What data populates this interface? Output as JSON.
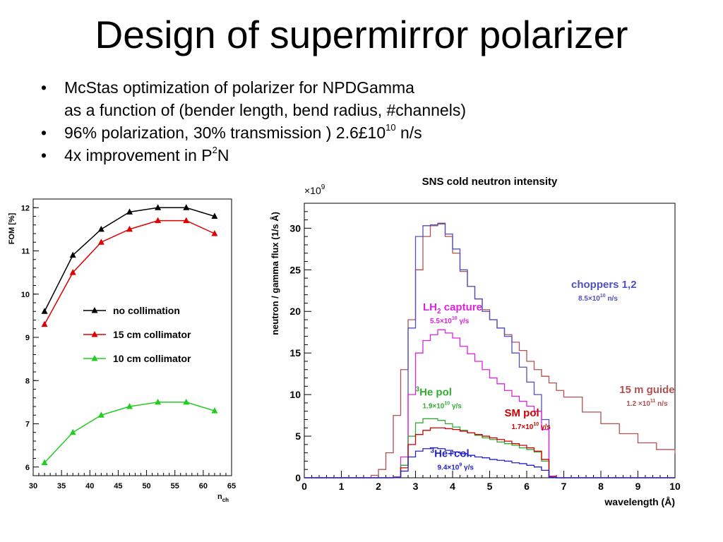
{
  "slide": {
    "title": "Design of supermirror polarizer",
    "bullets": [
      {
        "marker": "•",
        "text": "McStas optimization of polarizer for NPDGamma"
      },
      {
        "marker": "",
        "text": "as a function of (bender length, bend radius, #channels)"
      },
      {
        "marker": "•",
        "text_before": "96% polarization, 30% transmission  )  2.6£10",
        "sup": "10",
        "text_after": " n/s"
      },
      {
        "marker": "•",
        "text_before": "4x improvement in P",
        "sup": "2",
        "text_after": "N"
      }
    ]
  },
  "chart_data": [
    {
      "type": "line",
      "title": "",
      "xlabel": "n_ch",
      "ylabel": "FOM  [%]",
      "xlim": [
        30,
        65
      ],
      "ylim": [
        5.8,
        12.2
      ],
      "xticks": [
        30,
        35,
        40,
        45,
        50,
        55,
        60,
        65
      ],
      "yticks": [
        6,
        7,
        8,
        9,
        10,
        11,
        12
      ],
      "grid": false,
      "legend_position": "upper-middle",
      "x": [
        32,
        37,
        42,
        47,
        52,
        57,
        62
      ],
      "series": [
        {
          "name": "no collimation",
          "color": "#000000",
          "marker": "triangle",
          "values": [
            9.6,
            10.9,
            11.5,
            11.9,
            12.0,
            12.0,
            11.8
          ]
        },
        {
          "name": "15 cm collimator",
          "color": "#dd0000",
          "marker": "triangle",
          "values": [
            9.3,
            10.5,
            11.2,
            11.5,
            11.7,
            11.7,
            11.4
          ]
        },
        {
          "name": "10 cm collimator",
          "color": "#22cc22",
          "marker": "triangle",
          "values": [
            6.1,
            6.8,
            7.2,
            7.4,
            7.5,
            7.5,
            7.3
          ]
        }
      ]
    },
    {
      "type": "line",
      "title": "SNS cold neutron intensity",
      "xlabel": "wavelength (Å)",
      "ylabel": "neutron / gamma flux (1/s Å)",
      "y_multiplier": "×10",
      "y_multiplier_exp": "9",
      "xlim": [
        0,
        10
      ],
      "ylim": [
        0,
        33
      ],
      "xticks": [
        0,
        1,
        2,
        3,
        4,
        5,
        6,
        7,
        8,
        9,
        10
      ],
      "yticks": [
        0,
        5,
        10,
        15,
        20,
        25,
        30
      ],
      "grid": false,
      "x": [
        0,
        1,
        1.8,
        2.0,
        2.2,
        2.4,
        2.6,
        2.8,
        3.0,
        3.2,
        3.4,
        3.6,
        3.8,
        4.0,
        4.2,
        4.4,
        4.6,
        4.8,
        5.0,
        5.2,
        5.4,
        5.6,
        5.8,
        6.0,
        6.2,
        6.4,
        6.6,
        6.8,
        7.0,
        7.5,
        8.0,
        8.5,
        9.0,
        9.5,
        10.0
      ],
      "series": [
        {
          "name": "15 m guide",
          "color": "#b05050",
          "values": [
            0,
            0,
            0.3,
            1.0,
            3.0,
            7.5,
            13.0,
            19.0,
            25.0,
            29.0,
            30.3,
            30.5,
            29.0,
            27.0,
            24.8,
            23.0,
            21.5,
            20.2,
            19.0,
            18.0,
            17.2,
            16.3,
            15.3,
            14.0,
            13.0,
            12.2,
            11.4,
            10.5,
            9.7,
            7.9,
            6.5,
            5.3,
            4.2,
            3.4,
            2.9
          ]
        },
        {
          "name": "choppers 1,2",
          "color": "#5050c0",
          "values": [
            0,
            0,
            0,
            0,
            0,
            0.1,
            1.5,
            18.0,
            29.0,
            30.3,
            30.4,
            30.6,
            29.3,
            27.5,
            25.0,
            23.0,
            21.5,
            20.0,
            19.0,
            18.0,
            17.0,
            15.0,
            13.3,
            11.5,
            10.0,
            7.0,
            0.2,
            0,
            0,
            0,
            0,
            0,
            0,
            0,
            0
          ]
        },
        {
          "name": "LH2 capture",
          "color": "#dd22dd",
          "values": [
            0,
            0,
            0,
            0,
            0,
            0.1,
            2.5,
            10.0,
            15.0,
            16.5,
            17.2,
            17.8,
            17.4,
            16.8,
            15.8,
            14.9,
            14.0,
            13.0,
            12.0,
            11.3,
            10.5,
            9.8,
            9.2,
            8.6,
            8.0,
            5.8,
            0.2,
            0,
            0,
            0,
            0,
            0,
            0,
            0,
            0
          ]
        },
        {
          "name": "3He pol",
          "color": "#33aa33",
          "values": [
            0,
            0,
            0,
            0,
            0,
            0.05,
            1.5,
            5.0,
            6.6,
            7.1,
            7.1,
            6.9,
            6.5,
            6.1,
            5.7,
            5.4,
            5.1,
            4.8,
            4.6,
            4.3,
            4.1,
            3.9,
            3.6,
            3.4,
            3.1,
            2.0,
            0.1,
            0,
            0,
            0,
            0,
            0,
            0,
            0,
            0
          ]
        },
        {
          "name": "SM pol",
          "color": "#cc0000",
          "values": [
            0,
            0,
            0,
            0,
            0,
            0.05,
            1.2,
            4.0,
            5.2,
            5.7,
            6.0,
            6.0,
            5.9,
            5.8,
            5.6,
            5.4,
            5.2,
            5.0,
            4.8,
            4.6,
            4.4,
            4.1,
            3.9,
            3.6,
            3.2,
            2.2,
            0.1,
            0,
            0,
            0,
            0,
            0,
            0,
            0,
            0
          ]
        },
        {
          "name": "3He+col.",
          "color": "#2222cc",
          "values": [
            0,
            0,
            0,
            0,
            0,
            0.03,
            0.8,
            2.5,
            3.2,
            3.5,
            3.6,
            3.5,
            3.3,
            3.1,
            2.9,
            2.7,
            2.5,
            2.4,
            2.2,
            2.1,
            2.0,
            1.8,
            1.7,
            1.5,
            1.3,
            0.9,
            0.05,
            0,
            0,
            0,
            0,
            0,
            0,
            0,
            0
          ]
        }
      ],
      "annotations": [
        {
          "series": "choppers 1,2",
          "label": "choppers 1,2",
          "label_sub": "",
          "label_after": "",
          "value_line": "8.5×10",
          "value_exp": "10",
          "value_unit": " n/s",
          "x": 7.2,
          "y": 22.8
        },
        {
          "series": "LH2 capture",
          "label": "LH",
          "label_sub": "2",
          "label_after": " capture",
          "value_line": "5.5×10",
          "value_exp": "10",
          "value_unit": " γ/s",
          "x": 3.2,
          "y": 20.1
        },
        {
          "series": "3He pol",
          "label_pre_sup": "3",
          "label": "He pol",
          "label_sub": "",
          "label_after": "",
          "value_line": "1.9×10",
          "value_exp": "10",
          "value_unit": " γ/s",
          "x": 3.0,
          "y": 9.9
        },
        {
          "series": "SM pol",
          "label": "SM pol",
          "label_sub": "",
          "label_after": "",
          "value_line": "1.7×10",
          "value_exp": "10",
          "value_unit": " γ/s",
          "x": 5.4,
          "y": 7.4
        },
        {
          "series": "15 m guide",
          "label": "15 m guide",
          "label_sub": "",
          "label_after": "",
          "value_line": "1.2 ×10",
          "value_exp": "11",
          "value_unit": " n/s",
          "x": 8.5,
          "y": 10.2
        },
        {
          "series": "3He+col.",
          "label_pre_sup": "3",
          "label": "He+col.",
          "label_sub": "",
          "label_after": "",
          "value_line": "9.4×10",
          "value_exp": "9",
          "value_unit": " γ/s",
          "x": 3.4,
          "y": 2.5
        }
      ]
    }
  ]
}
